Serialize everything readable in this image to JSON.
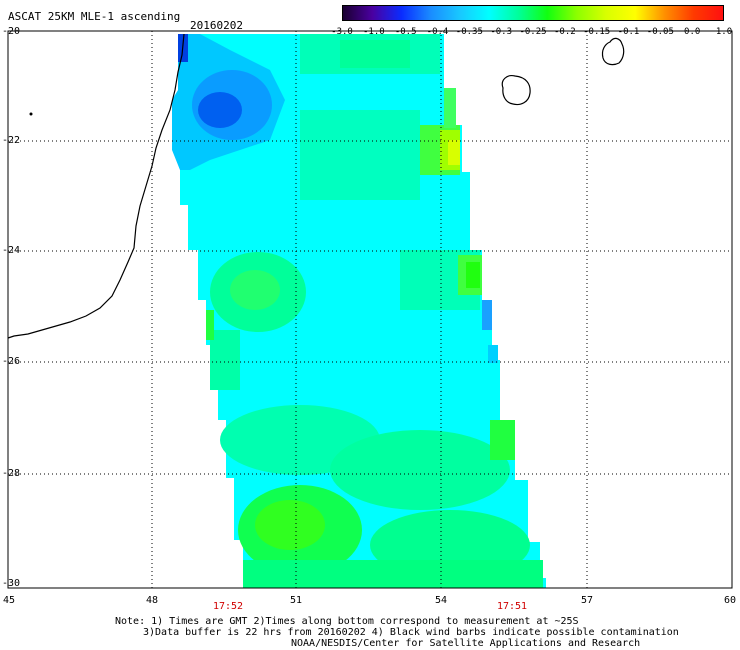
{
  "header": {
    "title": "ASCAT 25KM MLE-1 ascending",
    "date": "20160202"
  },
  "colorbar": {
    "tick_labels": [
      "-3.0",
      "-1.0",
      "-0.5",
      "-0.4",
      "-0.35",
      "-0.3",
      "-0.25",
      "-0.2",
      "-0.15",
      "-0.1",
      "-0.05",
      "0.0",
      "1.0"
    ],
    "colors": [
      "#1a0030",
      "#4a00a0",
      "#0a2cff",
      "#1a8cff",
      "#19c8ff",
      "#00ffff",
      "#00ff9a",
      "#12ff10",
      "#8cff00",
      "#d8ff00",
      "#ffff00",
      "#ff9000",
      "#ff3a00",
      "#ff1010"
    ]
  },
  "axes": {
    "y_labels": [
      "-20",
      "-22",
      "-24",
      "-26",
      "-28",
      "-30"
    ],
    "x_labels": [
      "45",
      "48",
      "51",
      "54",
      "57",
      "60"
    ]
  },
  "times": [
    "17:52",
    "17:51"
  ],
  "notes": {
    "line1": "Note: 1) Times are GMT 2)Times along bottom correspond to measurement at ~25S",
    "line2": "3)Data buffer is 22 hrs from 20160202 4) Black wind barbs indicate possible contamination",
    "line3": "NOAA/NESDIS/Center for Satellite Applications and Research"
  },
  "swath_colors": {
    "cyan": "#00ffff",
    "aqua_green": "#00ffb0",
    "green": "#10ff40",
    "lime": "#60ff00",
    "yellow_green": "#c8ff00",
    "blue": "#1070ff",
    "light_blue": "#00b0ff"
  }
}
